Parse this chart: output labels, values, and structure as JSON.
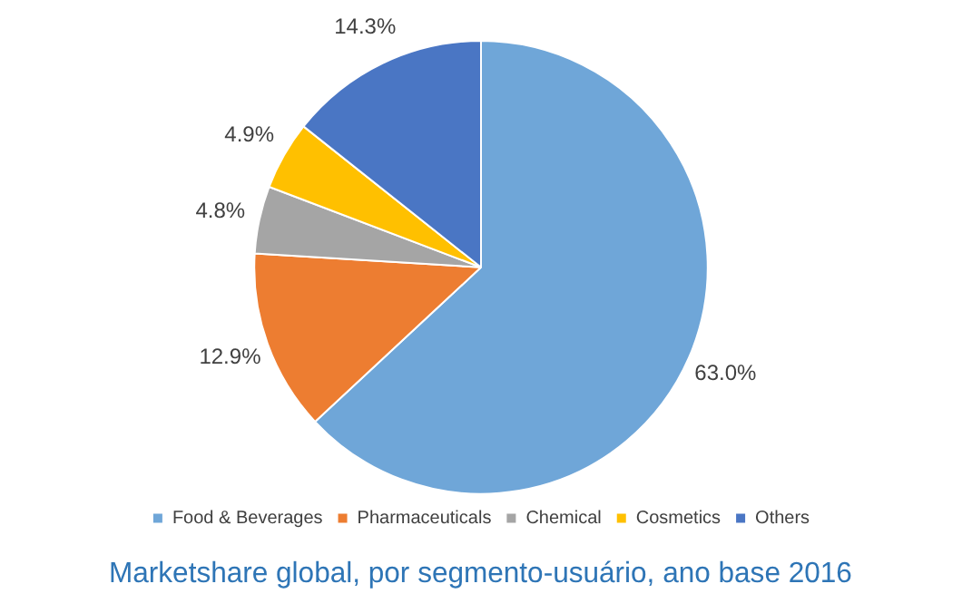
{
  "chart_data": {
    "type": "pie",
    "title": "Marketshare global, por segmento-usuário, ano base 2016",
    "categories": [
      "Food & Beverages",
      "Pharmaceuticals",
      "Chemical",
      "Cosmetics",
      "Others"
    ],
    "values": [
      63.0,
      12.9,
      4.8,
      4.9,
      14.3
    ],
    "value_labels": [
      "63.0%",
      "12.9%",
      "4.8%",
      "4.9%",
      "14.3%"
    ],
    "colors": [
      "#6fa6d8",
      "#ed7d31",
      "#a5a5a5",
      "#ffc000",
      "#4a76c4"
    ],
    "legend": "bottom"
  }
}
